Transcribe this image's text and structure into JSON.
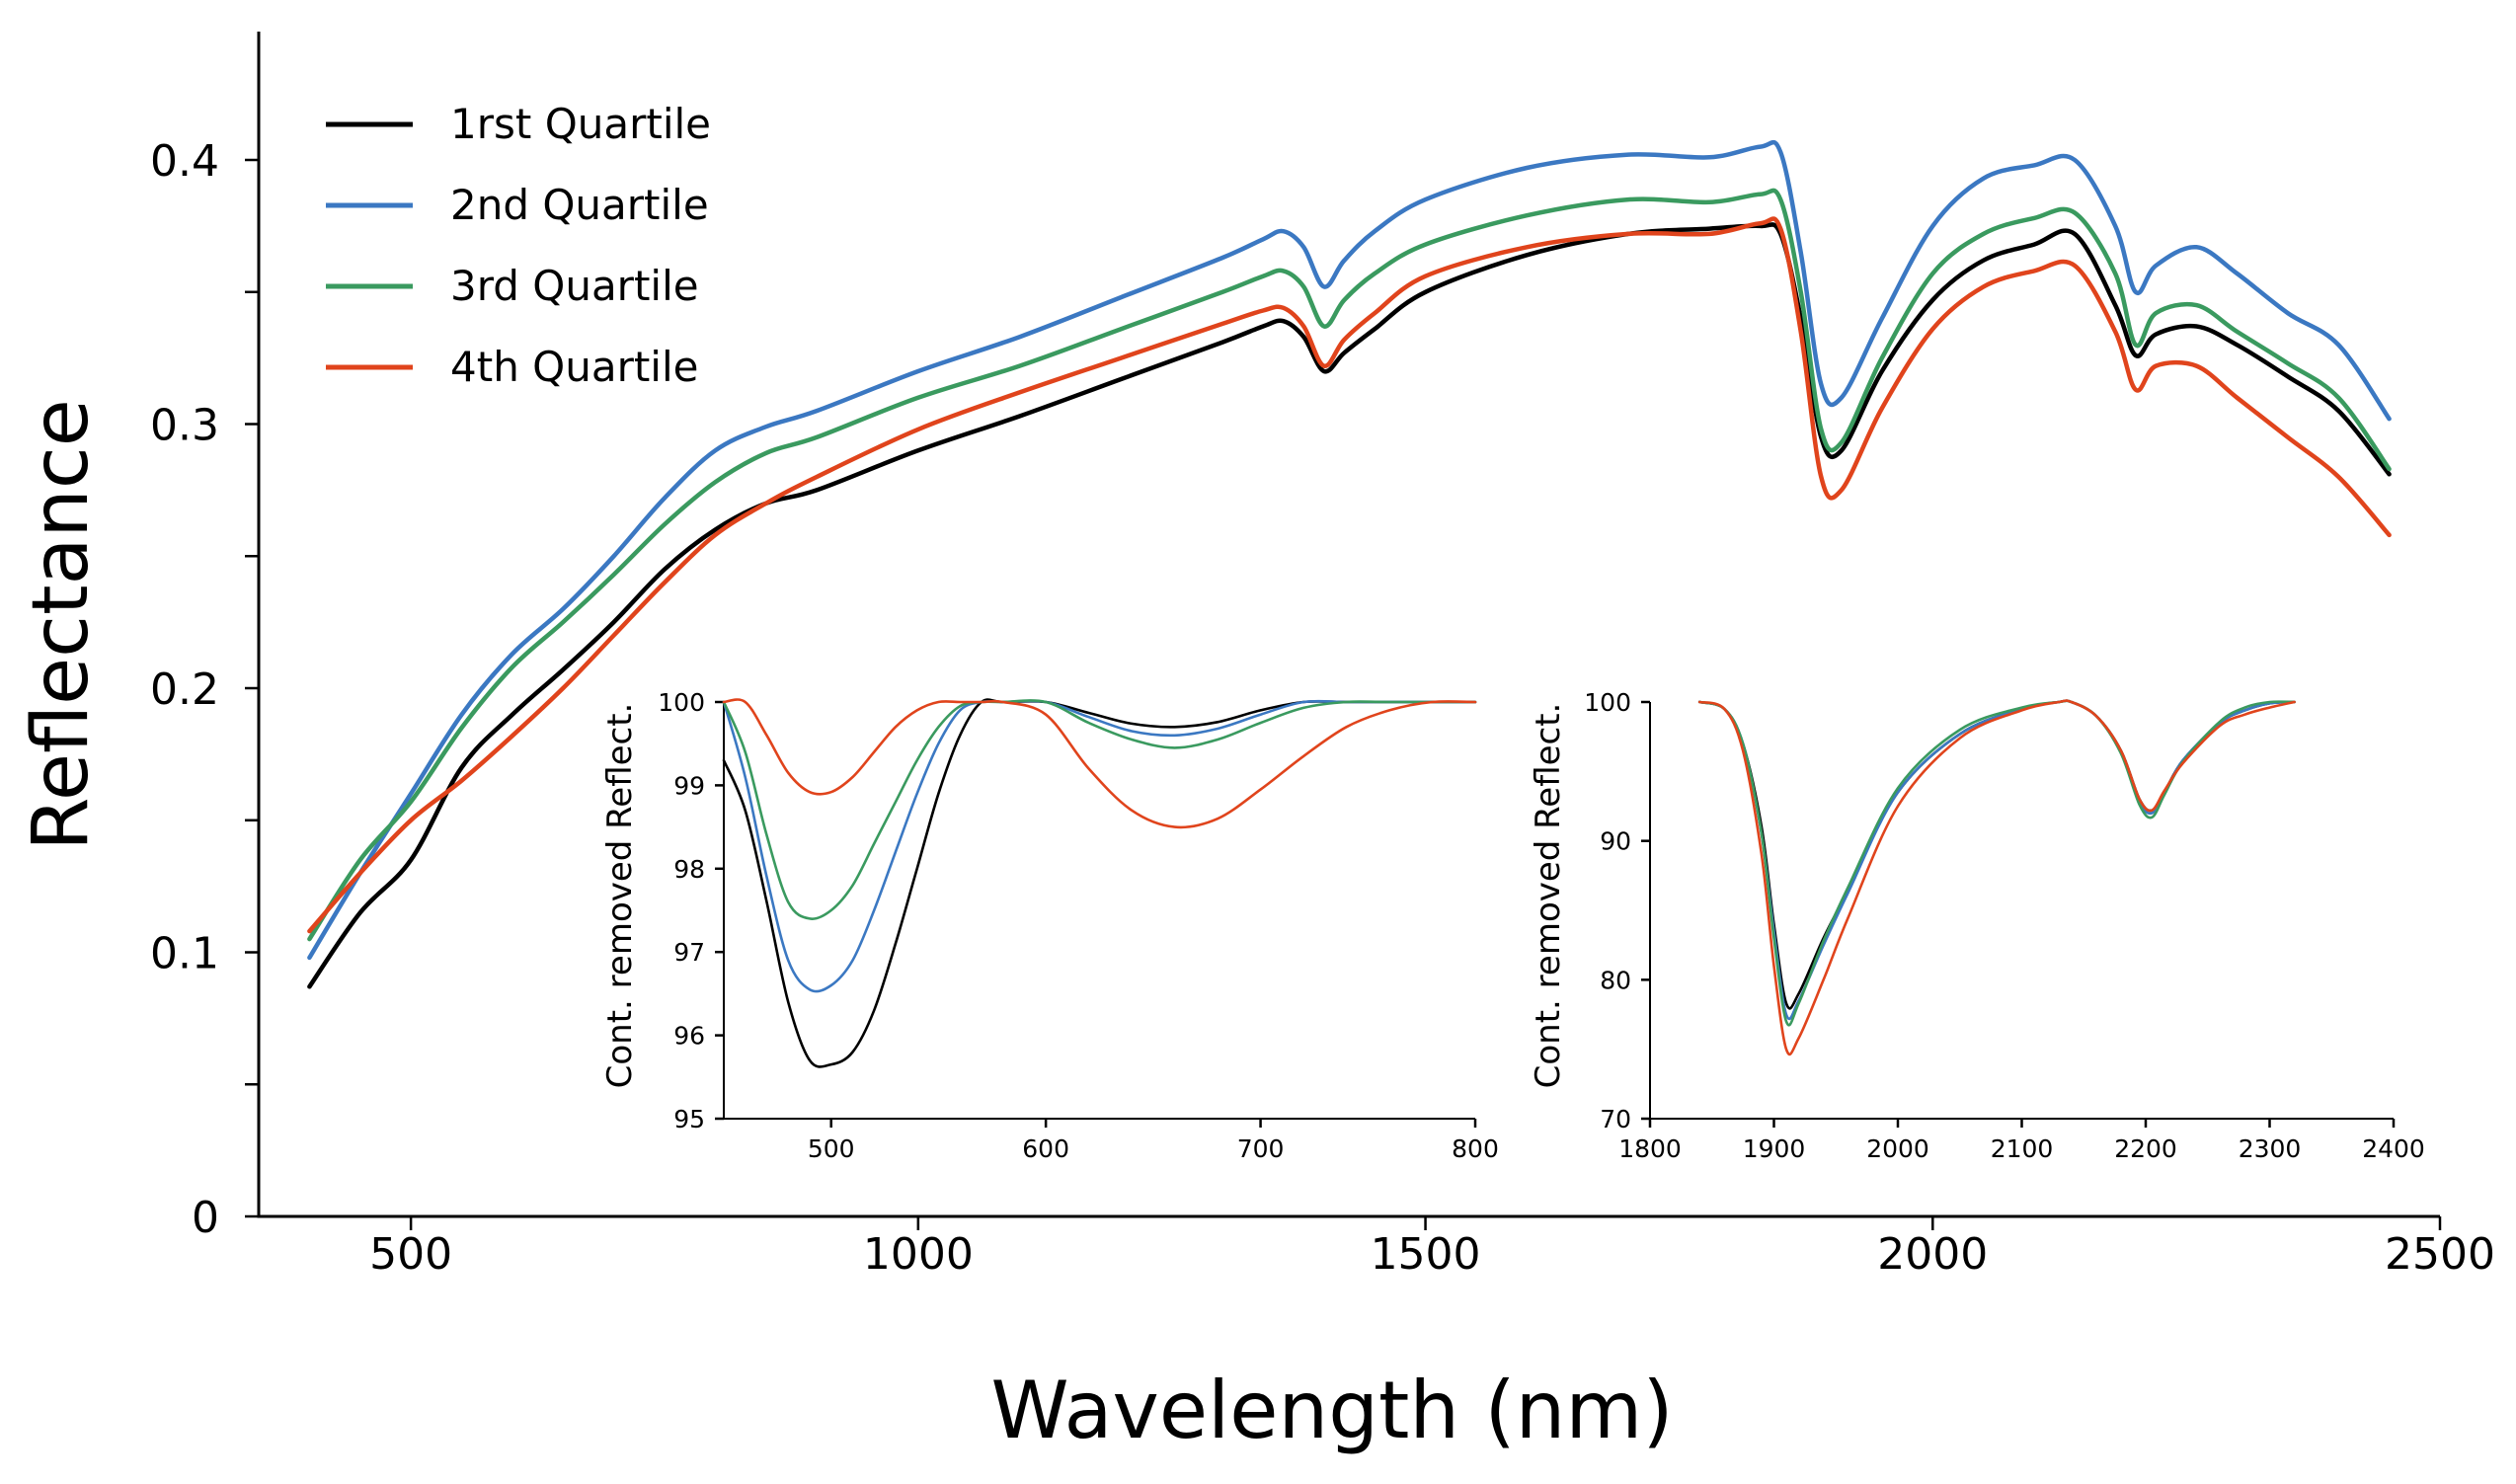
{
  "chart_data": [
    {
      "type": "line",
      "title": "",
      "xlabel": "Wavelength (nm)",
      "ylabel": "Reflectance",
      "xlim": [
        350,
        2500
      ],
      "ylim": [
        0,
        0.44
      ],
      "xticks": [
        500,
        1000,
        1500,
        2000,
        2500
      ],
      "yticks": [
        0,
        0.1,
        0.2,
        0.3,
        0.4
      ],
      "ytick_labels": [
        "0",
        "0.1",
        "0.2",
        "0.3",
        "0.4"
      ],
      "legend_position": "top-left",
      "series": [
        {
          "name": "1rst Quartile",
          "color": "#000000",
          "x": [
            400,
            450,
            500,
            550,
            600,
            650,
            700,
            750,
            800,
            850,
            900,
            1000,
            1100,
            1200,
            1300,
            1340,
            1360,
            1380,
            1400,
            1420,
            1450,
            1500,
            1600,
            1700,
            1780,
            1830,
            1850,
            1870,
            1890,
            1910,
            1950,
            2000,
            2050,
            2100,
            2140,
            2180,
            2200,
            2220,
            2260,
            2300,
            2350,
            2400,
            2450
          ],
          "y": [
            0.087,
            0.115,
            0.135,
            0.17,
            0.19,
            0.207,
            0.225,
            0.245,
            0.26,
            0.27,
            0.275,
            0.29,
            0.303,
            0.317,
            0.331,
            0.337,
            0.339,
            0.333,
            0.32,
            0.327,
            0.336,
            0.35,
            0.364,
            0.372,
            0.374,
            0.375,
            0.372,
            0.34,
            0.295,
            0.29,
            0.32,
            0.347,
            0.362,
            0.368,
            0.372,
            0.345,
            0.326,
            0.334,
            0.337,
            0.33,
            0.318,
            0.305,
            0.281
          ]
        },
        {
          "name": "2nd Quartile",
          "color": "#3b78c2",
          "x": [
            400,
            450,
            500,
            550,
            600,
            650,
            700,
            750,
            800,
            850,
            900,
            1000,
            1100,
            1200,
            1300,
            1340,
            1360,
            1380,
            1400,
            1420,
            1450,
            1500,
            1600,
            1700,
            1780,
            1830,
            1850,
            1870,
            1890,
            1910,
            1950,
            2000,
            2050,
            2100,
            2140,
            2180,
            2200,
            2220,
            2260,
            2300,
            2350,
            2400,
            2450
          ],
          "y": [
            0.098,
            0.13,
            0.16,
            0.19,
            0.213,
            0.23,
            0.25,
            0.272,
            0.29,
            0.299,
            0.305,
            0.32,
            0.333,
            0.348,
            0.363,
            0.37,
            0.373,
            0.367,
            0.352,
            0.362,
            0.373,
            0.385,
            0.397,
            0.402,
            0.401,
            0.405,
            0.403,
            0.365,
            0.315,
            0.31,
            0.34,
            0.375,
            0.393,
            0.398,
            0.4,
            0.375,
            0.35,
            0.36,
            0.367,
            0.357,
            0.342,
            0.33,
            0.302
          ]
        },
        {
          "name": "3rd Quartile",
          "color": "#3a9a5f",
          "x": [
            400,
            450,
            500,
            550,
            600,
            650,
            700,
            750,
            800,
            850,
            900,
            1000,
            1100,
            1200,
            1300,
            1340,
            1360,
            1380,
            1400,
            1420,
            1450,
            1500,
            1600,
            1700,
            1780,
            1830,
            1850,
            1870,
            1890,
            1910,
            1950,
            2000,
            2050,
            2100,
            2140,
            2180,
            2200,
            2220,
            2260,
            2300,
            2350,
            2400,
            2450
          ],
          "y": [
            0.105,
            0.135,
            0.157,
            0.185,
            0.208,
            0.225,
            0.243,
            0.262,
            0.278,
            0.289,
            0.295,
            0.31,
            0.322,
            0.336,
            0.35,
            0.356,
            0.358,
            0.352,
            0.337,
            0.347,
            0.357,
            0.368,
            0.379,
            0.385,
            0.384,
            0.387,
            0.385,
            0.35,
            0.298,
            0.293,
            0.325,
            0.357,
            0.372,
            0.378,
            0.38,
            0.357,
            0.33,
            0.342,
            0.345,
            0.335,
            0.323,
            0.31,
            0.283
          ]
        },
        {
          "name": "4th Quartile",
          "color": "#e0441c",
          "x": [
            400,
            450,
            500,
            550,
            600,
            650,
            700,
            750,
            800,
            850,
            900,
            1000,
            1100,
            1200,
            1300,
            1340,
            1360,
            1380,
            1400,
            1420,
            1450,
            1500,
            1600,
            1700,
            1780,
            1830,
            1850,
            1870,
            1890,
            1910,
            1950,
            2000,
            2050,
            2100,
            2140,
            2180,
            2200,
            2220,
            2260,
            2300,
            2350,
            2400,
            2450
          ],
          "y": [
            0.108,
            0.13,
            0.15,
            0.165,
            0.182,
            0.2,
            0.22,
            0.24,
            0.258,
            0.27,
            0.28,
            0.298,
            0.312,
            0.325,
            0.338,
            0.343,
            0.344,
            0.337,
            0.322,
            0.332,
            0.342,
            0.356,
            0.367,
            0.372,
            0.372,
            0.376,
            0.374,
            0.335,
            0.28,
            0.275,
            0.306,
            0.336,
            0.352,
            0.358,
            0.36,
            0.335,
            0.313,
            0.322,
            0.322,
            0.31,
            0.295,
            0.28,
            0.258
          ]
        }
      ]
    },
    {
      "type": "line",
      "title": "",
      "xlabel": "",
      "ylabel": "Cont. removed Reflect.",
      "xlim": [
        450,
        800
      ],
      "ylim": [
        95,
        100
      ],
      "xticks": [
        500,
        600,
        700,
        800
      ],
      "yticks": [
        95,
        96,
        97,
        98,
        99,
        100
      ],
      "series": [
        {
          "color": "#000000",
          "x": [
            450,
            460,
            470,
            480,
            490,
            500,
            510,
            520,
            530,
            540,
            550,
            560,
            570,
            580,
            600,
            620,
            640,
            660,
            680,
            700,
            720,
            740,
            760,
            800
          ],
          "y": [
            99.3,
            98.7,
            97.6,
            96.4,
            95.7,
            95.65,
            95.8,
            96.3,
            97.1,
            98.0,
            98.9,
            99.6,
            100,
            100,
            100,
            99.87,
            99.74,
            99.7,
            99.76,
            99.9,
            100,
            100,
            100,
            100
          ]
        },
        {
          "color": "#3b78c2",
          "x": [
            450,
            460,
            470,
            480,
            490,
            500,
            510,
            520,
            530,
            540,
            550,
            560,
            570,
            580,
            600,
            620,
            640,
            660,
            680,
            700,
            720,
            740,
            760,
            800
          ],
          "y": [
            100,
            99.1,
            97.9,
            96.9,
            96.55,
            96.6,
            96.9,
            97.5,
            98.2,
            98.9,
            99.5,
            99.9,
            100,
            100,
            100,
            99.82,
            99.65,
            99.6,
            99.68,
            99.85,
            100,
            100,
            100,
            100
          ]
        },
        {
          "color": "#3a9a5f",
          "x": [
            450,
            460,
            470,
            480,
            490,
            500,
            510,
            520,
            530,
            540,
            550,
            560,
            570,
            580,
            600,
            620,
            640,
            660,
            680,
            700,
            720,
            740,
            760,
            800
          ],
          "y": [
            100,
            99.4,
            98.4,
            97.6,
            97.4,
            97.5,
            97.8,
            98.3,
            98.8,
            99.3,
            99.7,
            99.95,
            100,
            100,
            100,
            99.75,
            99.55,
            99.45,
            99.55,
            99.75,
            99.93,
            100,
            100,
            100
          ]
        },
        {
          "color": "#e0441c",
          "x": [
            450,
            460,
            470,
            480,
            490,
            500,
            510,
            520,
            530,
            540,
            550,
            560,
            570,
            580,
            600,
            620,
            640,
            660,
            680,
            700,
            720,
            740,
            760,
            780,
            800
          ],
          "y": [
            100,
            100,
            99.6,
            99.15,
            98.92,
            98.92,
            99.1,
            99.4,
            99.7,
            99.9,
            100,
            100,
            100,
            100,
            99.85,
            99.2,
            98.7,
            98.5,
            98.6,
            98.95,
            99.35,
            99.7,
            99.9,
            100,
            100
          ]
        }
      ]
    },
    {
      "type": "line",
      "title": "",
      "xlabel": "",
      "ylabel": "Cont. removed Reflect.",
      "xlim": [
        1800,
        2400
      ],
      "ylim": [
        70,
        100
      ],
      "xticks": [
        1800,
        1900,
        2000,
        2100,
        2200,
        2300,
        2400
      ],
      "yticks": [
        70,
        80,
        90,
        100
      ],
      "series": [
        {
          "color": "#000000",
          "x": [
            1840,
            1860,
            1875,
            1890,
            1900,
            1910,
            1920,
            1940,
            1960,
            2000,
            2050,
            2100,
            2130,
            2140,
            2160,
            2180,
            2195,
            2205,
            2215,
            2230,
            2260,
            2280,
            2300,
            2320
          ],
          "y": [
            100,
            99.5,
            97,
            91,
            84,
            78.3,
            79,
            83,
            86.5,
            93.5,
            97.7,
            99.5,
            100,
            100,
            99,
            96.5,
            93,
            92.2,
            93.5,
            95.8,
            98.5,
            99.4,
            99.9,
            100
          ]
        },
        {
          "color": "#3b78c2",
          "x": [
            1840,
            1860,
            1875,
            1890,
            1900,
            1910,
            1920,
            1940,
            1960,
            2000,
            2050,
            2100,
            2130,
            2140,
            2160,
            2180,
            2195,
            2205,
            2215,
            2230,
            2260,
            2280,
            2300,
            2320
          ],
          "y": [
            100,
            99.5,
            97,
            90.5,
            83.5,
            77.5,
            78.5,
            82.5,
            86.3,
            93.5,
            97.7,
            99.5,
            100,
            100,
            99,
            96.4,
            92.8,
            92.0,
            93.4,
            95.8,
            98.5,
            99.4,
            99.9,
            100
          ]
        },
        {
          "color": "#3a9a5f",
          "x": [
            1840,
            1860,
            1875,
            1890,
            1900,
            1910,
            1920,
            1940,
            1960,
            2000,
            2050,
            2100,
            2130,
            2140,
            2160,
            2180,
            2195,
            2205,
            2215,
            2230,
            2260,
            2280,
            2300,
            2320
          ],
          "y": [
            100,
            99.5,
            97,
            90.5,
            83,
            77,
            78.3,
            82.8,
            86.7,
            93.8,
            98,
            99.6,
            100,
            100,
            99,
            96.3,
            92.6,
            91.7,
            93.3,
            95.7,
            98.6,
            99.6,
            100,
            100
          ]
        },
        {
          "color": "#e0441c",
          "x": [
            1840,
            1860,
            1875,
            1890,
            1900,
            1910,
            1920,
            1940,
            1960,
            2000,
            2050,
            2100,
            2130,
            2140,
            2160,
            2180,
            2195,
            2205,
            2215,
            2230,
            2260,
            2280,
            2300,
            2320
          ],
          "y": [
            100,
            99.5,
            96.5,
            89,
            81,
            75,
            75.8,
            80,
            84.5,
            92.5,
            97.4,
            99.4,
            100,
            100,
            99,
            96.5,
            93,
            92.2,
            93.6,
            95.6,
            98.3,
            99.1,
            99.6,
            100
          ]
        }
      ]
    }
  ]
}
